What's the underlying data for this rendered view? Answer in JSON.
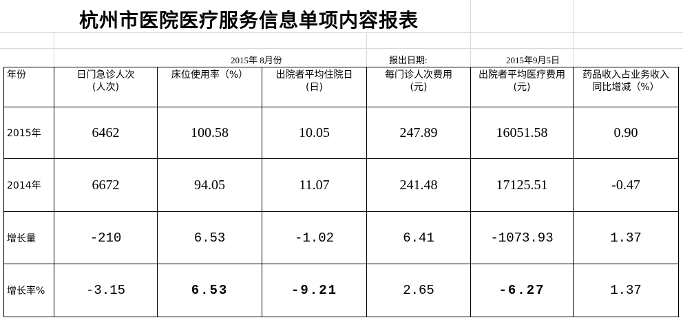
{
  "header": {
    "title": "杭州市医院医疗服务信息单项内容报表",
    "month": "2015年 8月份",
    "report_label": "报出日期:",
    "report_date": "2015年9月5日"
  },
  "table": {
    "columns": [
      "年份",
      "日门急诊人次\n(人次)",
      "床位使用率（%）",
      "出院者平均住院日\n(日)",
      "每门诊人次费用\n(元)",
      "出院者平均医疗费用\n(元)",
      "药品收入占业务收入\n同比增减（%）"
    ],
    "rows": [
      [
        "2015年",
        "6462",
        "100.58",
        "10.05",
        "247.89",
        "16051.58",
        "0.90"
      ],
      [
        "2014年",
        "6672",
        "94.05",
        "11.07",
        "241.48",
        "17125.51",
        "-0.47"
      ],
      [
        "增长量",
        "-210",
        "6.53",
        "-1.02",
        "6.41",
        "-1073.93",
        "1.37"
      ],
      [
        "增长率%",
        "-3.15",
        "6.53",
        "-9.21",
        "2.65",
        "-6.27",
        "1.37"
      ]
    ]
  }
}
